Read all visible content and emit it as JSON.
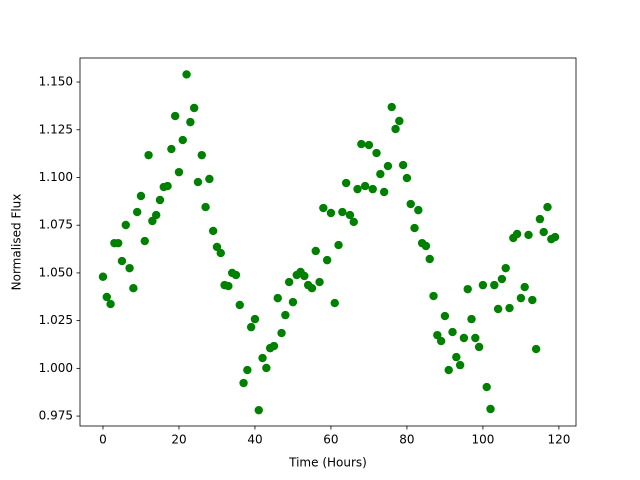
{
  "chart_data": {
    "type": "scatter",
    "xlabel": "Time (Hours)",
    "ylabel": "Normalised Flux",
    "color": "#008000",
    "x": [
      0,
      1,
      2,
      3,
      4,
      5,
      6,
      7,
      8,
      9,
      10,
      11,
      12,
      13,
      14,
      15,
      16,
      17,
      18,
      19,
      20,
      21,
      22,
      23,
      24,
      25,
      26,
      27,
      28,
      29,
      30,
      31,
      32,
      33,
      34,
      35,
      36,
      37,
      38,
      39,
      40,
      41,
      42,
      43,
      44,
      45,
      46,
      47,
      48,
      49,
      50,
      51,
      52,
      53,
      54,
      55,
      56,
      57,
      58,
      59,
      60,
      61,
      62,
      63,
      64,
      65,
      66,
      67,
      68,
      69,
      70,
      71,
      72,
      73,
      74,
      75,
      76,
      77,
      78,
      79,
      80,
      81,
      82,
      83,
      84,
      85,
      86,
      87,
      88,
      89,
      90,
      91,
      92,
      93,
      94,
      95,
      96,
      97,
      98,
      99,
      100,
      101,
      102,
      103,
      104,
      105,
      106,
      107,
      108,
      109,
      110,
      111,
      112,
      113,
      114,
      115,
      116,
      117,
      118,
      119
    ],
    "values": [
      1.048,
      1.0374,
      1.0337,
      1.0656,
      1.0656,
      1.0562,
      1.0751,
      1.0525,
      1.042,
      1.0819,
      1.0903,
      1.0667,
      1.1117,
      1.0772,
      1.0803,
      1.0882,
      1.095,
      1.0955,
      1.1149,
      1.1322,
      1.1028,
      1.1196,
      1.154,
      1.129,
      1.1364,
      1.0976,
      1.1117,
      1.0845,
      1.0992,
      1.072,
      1.0636,
      1.0604,
      1.0436,
      1.0431,
      1.05,
      1.0489,
      1.0332,
      0.9923,
      0.9991,
      1.0216,
      1.0258,
      0.9781,
      1.0054,
      1.0002,
      1.0106,
      1.0117,
      1.0368,
      1.0185,
      1.0279,
      1.0452,
      1.0347,
      1.0489,
      1.0505,
      1.0484,
      1.0436,
      1.042,
      1.0615,
      1.0452,
      1.084,
      1.0567,
      1.0814,
      1.0342,
      1.0646,
      1.0819,
      1.0971,
      1.0803,
      1.0767,
      1.0939,
      1.1175,
      1.0955,
      1.117,
      1.0939,
      1.1128,
      1.1018,
      1.0924,
      1.106,
      1.1369,
      1.1254,
      1.1296,
      1.1065,
      1.0997,
      1.0861,
      1.0735,
      1.0829,
      1.0656,
      1.0641,
      1.0573,
      1.0379,
      1.0174,
      1.0143,
      1.0274,
      0.9991,
      1.019,
      1.0059,
      1.0017,
      1.0159,
      1.0415,
      1.0258,
      1.0159,
      1.0112,
      1.0436,
      0.9902,
      0.9787,
      1.0436,
      1.0311,
      1.0468,
      1.0525,
      1.0316,
      1.0683,
      1.0704,
      1.0368,
      1.0426,
      1.0699,
      1.0358,
      1.0101,
      1.0782,
      1.0714,
      1.0845,
      1.0677,
      1.0688
    ],
    "xlim": [
      -6.05,
      124.5
    ],
    "xticks": [
      0,
      20,
      40,
      60,
      80,
      100,
      120
    ],
    "ylim": [
      0.9698,
      1.1626
    ],
    "yticks": [
      0.975,
      {
        "value": 1.0,
        "label": "1.000"
      },
      1.025,
      {
        "value": 1.05,
        "label": "1.050"
      },
      1.075,
      {
        "value": 1.1,
        "label": "1.100"
      },
      1.125,
      {
        "value": 1.15,
        "label": "1.150"
      }
    ]
  }
}
